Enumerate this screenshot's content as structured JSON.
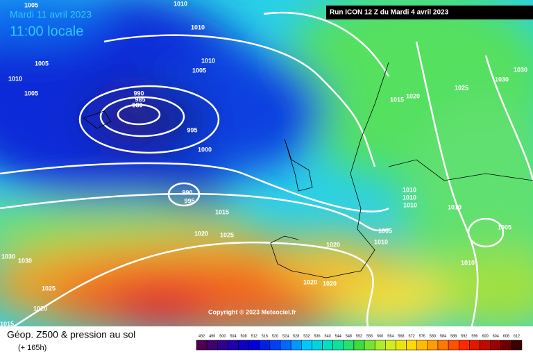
{
  "header": {
    "date": "Mardi 11 avril 2023",
    "time": "11:00 locale",
    "run": "Run ICON 12 Z du Mardi 4 avril 2023"
  },
  "copyright": "Copyright © 2023 Meteociel.fr",
  "footer": {
    "title": "Géop. Z500 & pression au sol",
    "lead": "(+ 165h)"
  },
  "scale": {
    "labels": [
      "492",
      "496",
      "500",
      "504",
      "508",
      "512",
      "516",
      "520",
      "524",
      "528",
      "532",
      "536",
      "540",
      "544",
      "548",
      "552",
      "556",
      "560",
      "564",
      "568",
      "572",
      "576",
      "580",
      "584",
      "588",
      "592",
      "596",
      "600",
      "604",
      "608",
      "612"
    ]
  },
  "isobars": [
    "1005",
    "1010",
    "1010",
    "1005",
    "1010",
    "1005",
    "1010",
    "1005",
    "990",
    "985",
    "980",
    "995",
    "1000",
    "990",
    "995",
    "1015",
    "1020",
    "1025",
    "1030",
    "1030",
    "1025",
    "1020",
    "1015",
    "1020",
    "1020",
    "1020",
    "1020",
    "1010",
    "1005",
    "1010",
    "1010",
    "1010",
    "1010",
    "1005",
    "1010",
    "1015",
    "1020",
    "1025",
    "1030",
    "1030"
  ]
}
